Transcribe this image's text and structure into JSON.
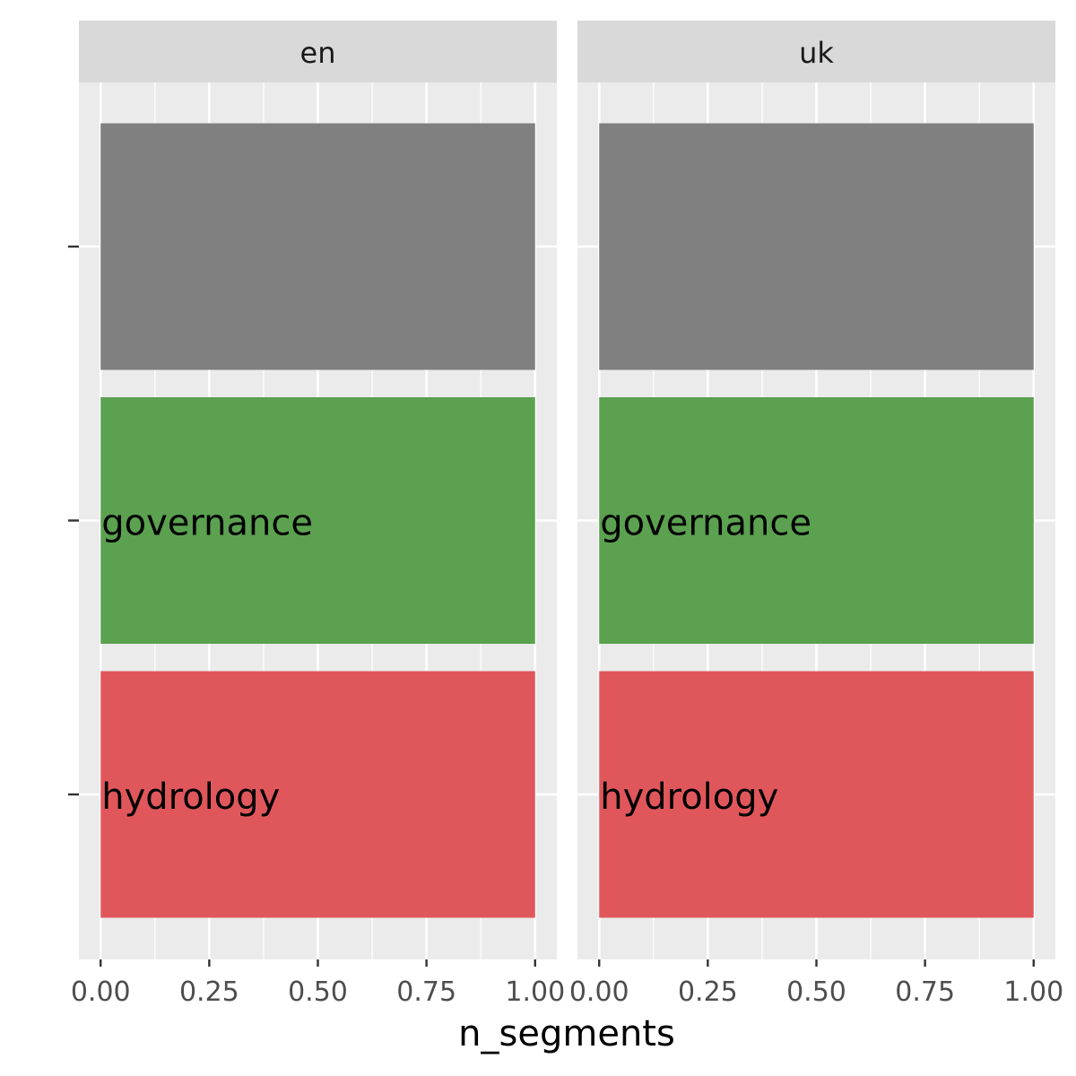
{
  "chart_data": {
    "type": "bar",
    "orientation": "horizontal",
    "facet_by": "language",
    "facets": [
      {
        "name": "en",
        "bars": [
          {
            "label": "",
            "value": 1.0,
            "color": "#808080"
          },
          {
            "label": "governance",
            "value": 1.0,
            "color": "#5BA150"
          },
          {
            "label": "hydrology",
            "value": 1.0,
            "color": "#E0575B"
          }
        ]
      },
      {
        "name": "uk",
        "bars": [
          {
            "label": "",
            "value": 1.0,
            "color": "#808080"
          },
          {
            "label": "governance",
            "value": 1.0,
            "color": "#5BA150"
          },
          {
            "label": "hydrology",
            "value": 1.0,
            "color": "#E0575B"
          }
        ]
      }
    ],
    "x_ticks": [
      "0.00",
      "0.25",
      "0.50",
      "0.75",
      "1.00"
    ],
    "x_tick_values": [
      0,
      0.25,
      0.5,
      0.75,
      1.0
    ],
    "xlabel": "n_segments",
    "ylabel": "",
    "xlim": [
      -0.05,
      1.05
    ],
    "grid": true,
    "legend": "none",
    "colors": {
      "panel_background": "#EBEBEB",
      "strip_background": "#D9D9D9",
      "grid": "#FFFFFF"
    }
  }
}
